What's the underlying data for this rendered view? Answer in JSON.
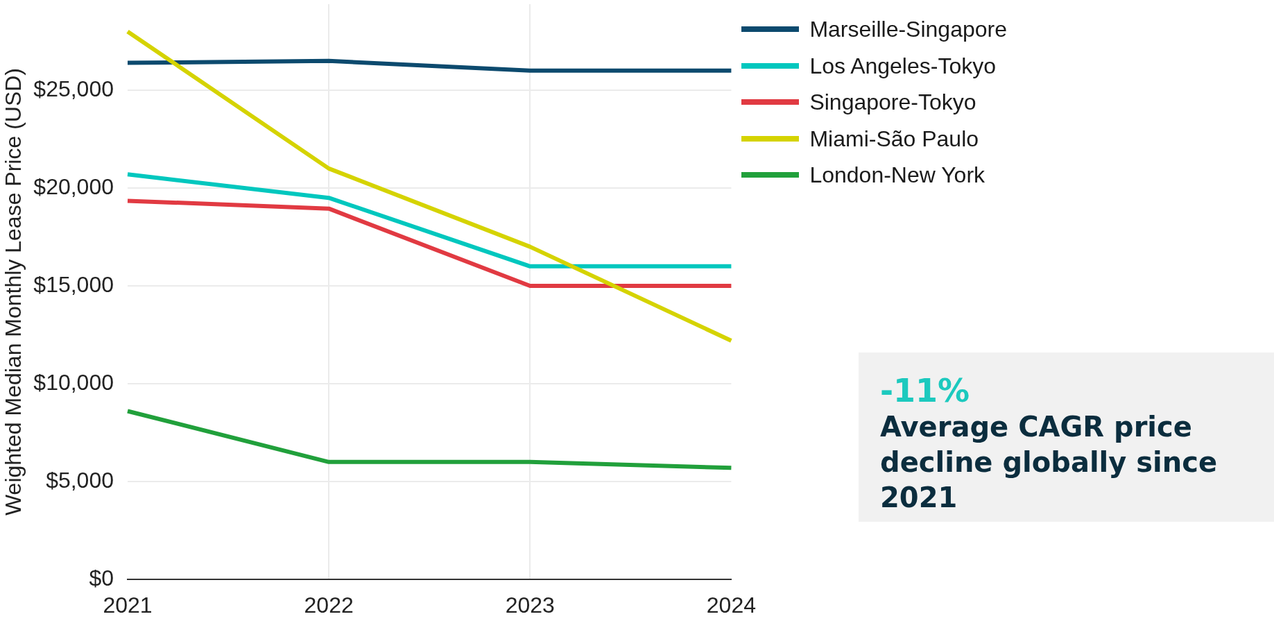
{
  "chart_data": [
    {
      "type": "line",
      "ylabel": "Weighted Median Monthly Lease Price (USD)",
      "categories": [
        "2021",
        "2022",
        "2023",
        "2024"
      ],
      "series": [
        {
          "name": "Marseille-Singapore",
          "color": "#0c4a6e",
          "values": [
            26400,
            26500,
            26000,
            26000
          ]
        },
        {
          "name": "Los Angeles-Tokyo",
          "color": "#00c7be",
          "values": [
            20700,
            19500,
            16000,
            16000
          ]
        },
        {
          "name": "Singapore-Tokyo",
          "color": "#e13a42",
          "values": [
            19350,
            18950,
            15000,
            15000
          ]
        },
        {
          "name": "Miami-São Paulo",
          "color": "#d5d300",
          "values": [
            28000,
            21000,
            17000,
            12200
          ]
        },
        {
          "name": "London-New York",
          "color": "#21a03b",
          "values": [
            8600,
            6000,
            6000,
            5700
          ]
        }
      ],
      "ylim": [
        0,
        29400
      ],
      "yticks": [
        {
          "value": 0,
          "label": "$0"
        },
        {
          "value": 5000,
          "label": "$5,000"
        },
        {
          "value": 10000,
          "label": "$10,000"
        },
        {
          "value": 15000,
          "label": "$15,000"
        },
        {
          "value": 20000,
          "label": "$20,000"
        },
        {
          "value": 25000,
          "label": "$25,000"
        }
      ],
      "grid": true,
      "legend": "top right"
    },
    {
      "type": "other",
      "annotations": [
        "-11%",
        "Average CAGR price decline globally since 2021"
      ]
    }
  ]
}
